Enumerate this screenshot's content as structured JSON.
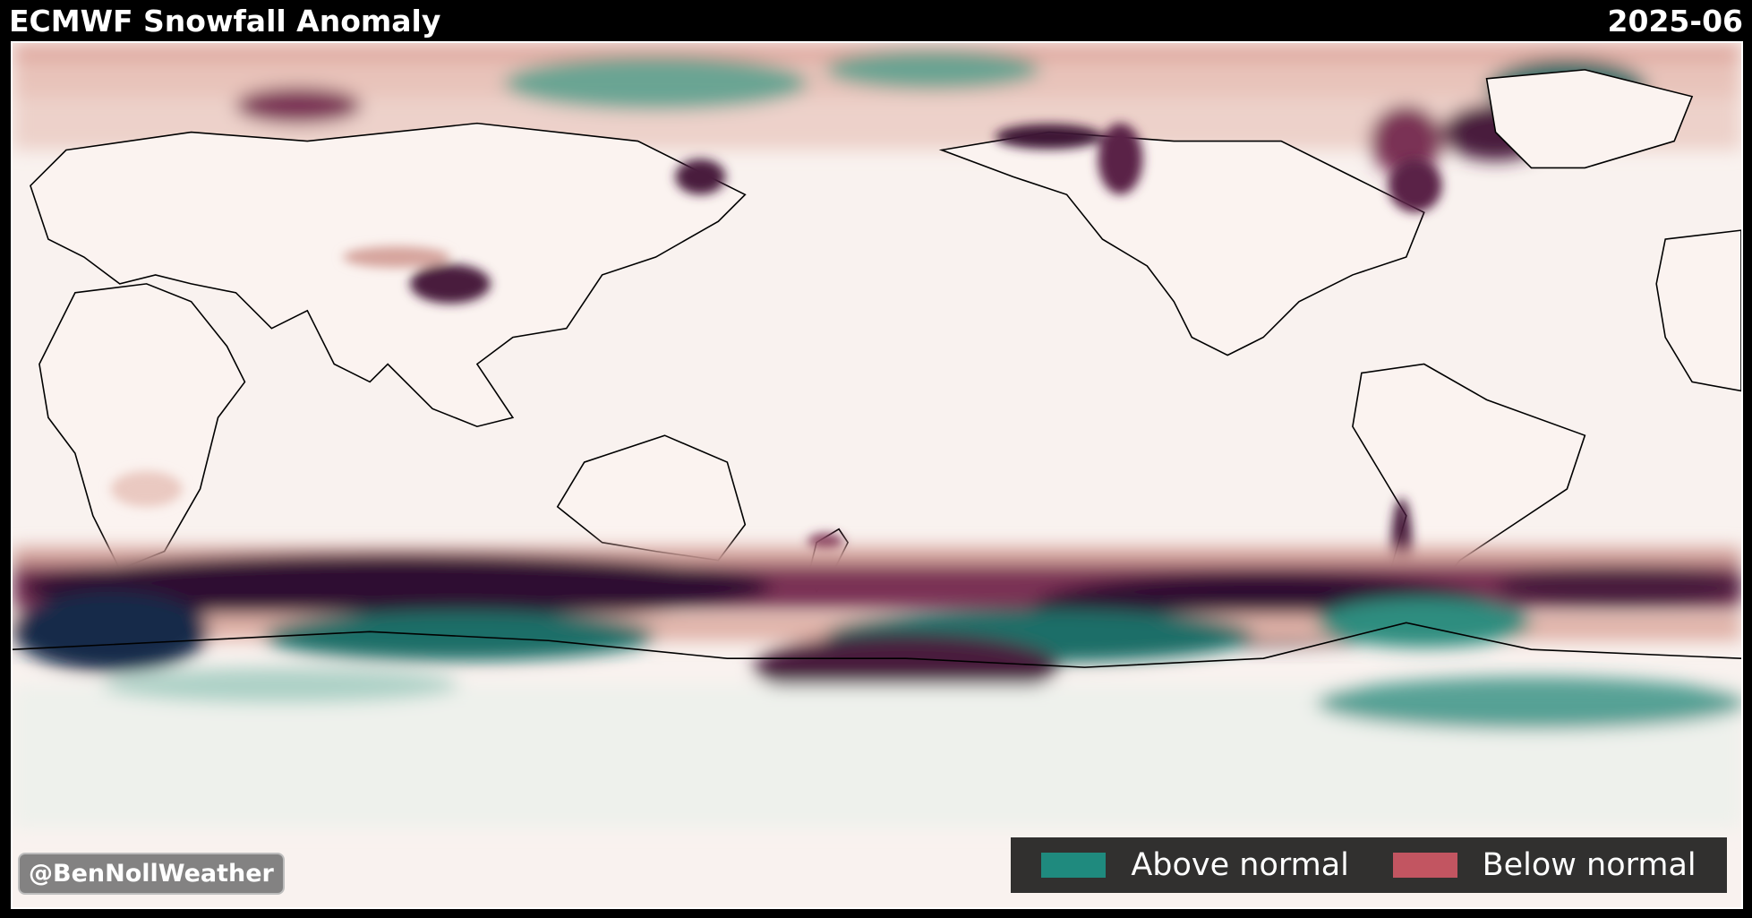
{
  "header": {
    "title": "ECMWF Snowfall Anomaly",
    "date": "2025-06"
  },
  "legend": {
    "items": [
      {
        "label": "Above normal",
        "color": "#1f8a7e"
      },
      {
        "label": "Below normal",
        "color": "#c25561"
      }
    ]
  },
  "credit": "@BenNollWeather",
  "colors": {
    "ocean_background": "#f9f2ef",
    "deep_deficit": "#2d0f31",
    "deficit": "#6a2a4f",
    "light_deficit": "#d6a49d",
    "surplus": "#2f8d7f",
    "deep_surplus": "#162a4a",
    "coastline": "#000000"
  }
}
